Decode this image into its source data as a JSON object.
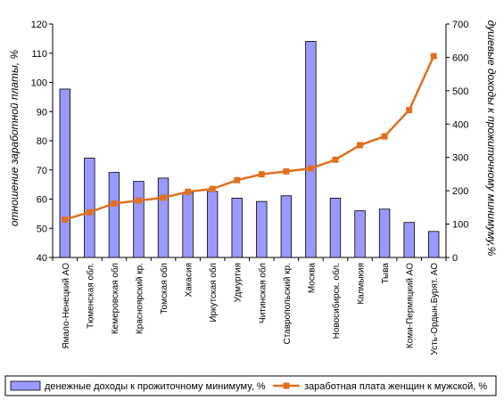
{
  "chart_data": {
    "type": "bar",
    "categories": [
      "Ямало-Ненецкий АО",
      "Тюменская обл.",
      "Кемеровская обл",
      "Красноярский кр.",
      "Томская обл",
      "Хакасия",
      "Иркутская обл",
      "Удмуртия",
      "Читинская обл",
      "Ставропольский кр.",
      "Москва",
      "Новосибирск. обл.",
      "Калмыкия",
      "Тыва",
      "Коми-Пермяцкий АО",
      "Усть-Ордын.Бурят. АО"
    ],
    "series": [
      {
        "name": "денежные доходы к прожиточному минимуму, %",
        "kind": "bar",
        "axis": "right",
        "color": "#9999ff",
        "values": [
          505,
          298,
          255,
          228,
          238,
          195,
          198,
          178,
          168,
          185,
          648,
          178,
          140,
          145,
          105,
          78
        ]
      },
      {
        "name": "заработная плата женщин к мужской, %",
        "kind": "line",
        "axis": "left",
        "color": "#e0701f",
        "values": [
          53,
          55.5,
          58.5,
          59.5,
          60.5,
          62.5,
          63.5,
          66.5,
          68.5,
          69.5,
          70.5,
          73.5,
          78.5,
          81.5,
          90.5,
          109
        ]
      }
    ],
    "y_left": {
      "label": "отношение заработной платы, %",
      "min": 40,
      "max": 120,
      "ticks": [
        40,
        50,
        60,
        70,
        80,
        90,
        100,
        110,
        120
      ]
    },
    "y_right": {
      "label": "душевые доходы к прожиточному минимуму,%",
      "min": 0,
      "max": 700,
      "ticks": [
        0,
        100,
        200,
        300,
        400,
        500,
        600,
        700
      ]
    },
    "legend_position": "bottom",
    "grid": false
  }
}
